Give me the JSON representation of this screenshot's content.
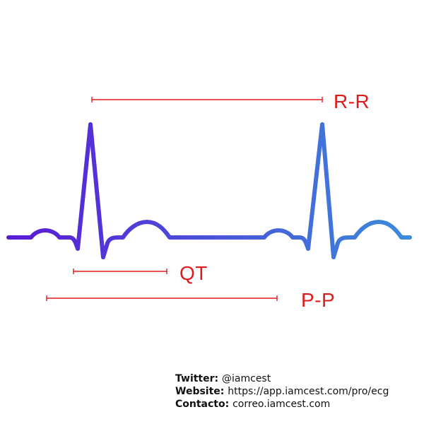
{
  "colors": {
    "trace_start": "#5B17D6",
    "trace_end": "#3A8FDB",
    "interval": "#E01B1B",
    "text": "#111111",
    "background": "#FFFFFF"
  },
  "intervals": {
    "rr": {
      "label": "R-R"
    },
    "qt": {
      "label": "QT"
    },
    "pp": {
      "label": "P-P"
    }
  },
  "credits": {
    "twitter_key": "Twitter:",
    "twitter_value": "@iamcest",
    "website_key": "Website:",
    "website_value": "https://app.iamcest.com/pro/ecg",
    "contact_key": "Contacto:",
    "contact_value": "correo.iamcest.com"
  }
}
